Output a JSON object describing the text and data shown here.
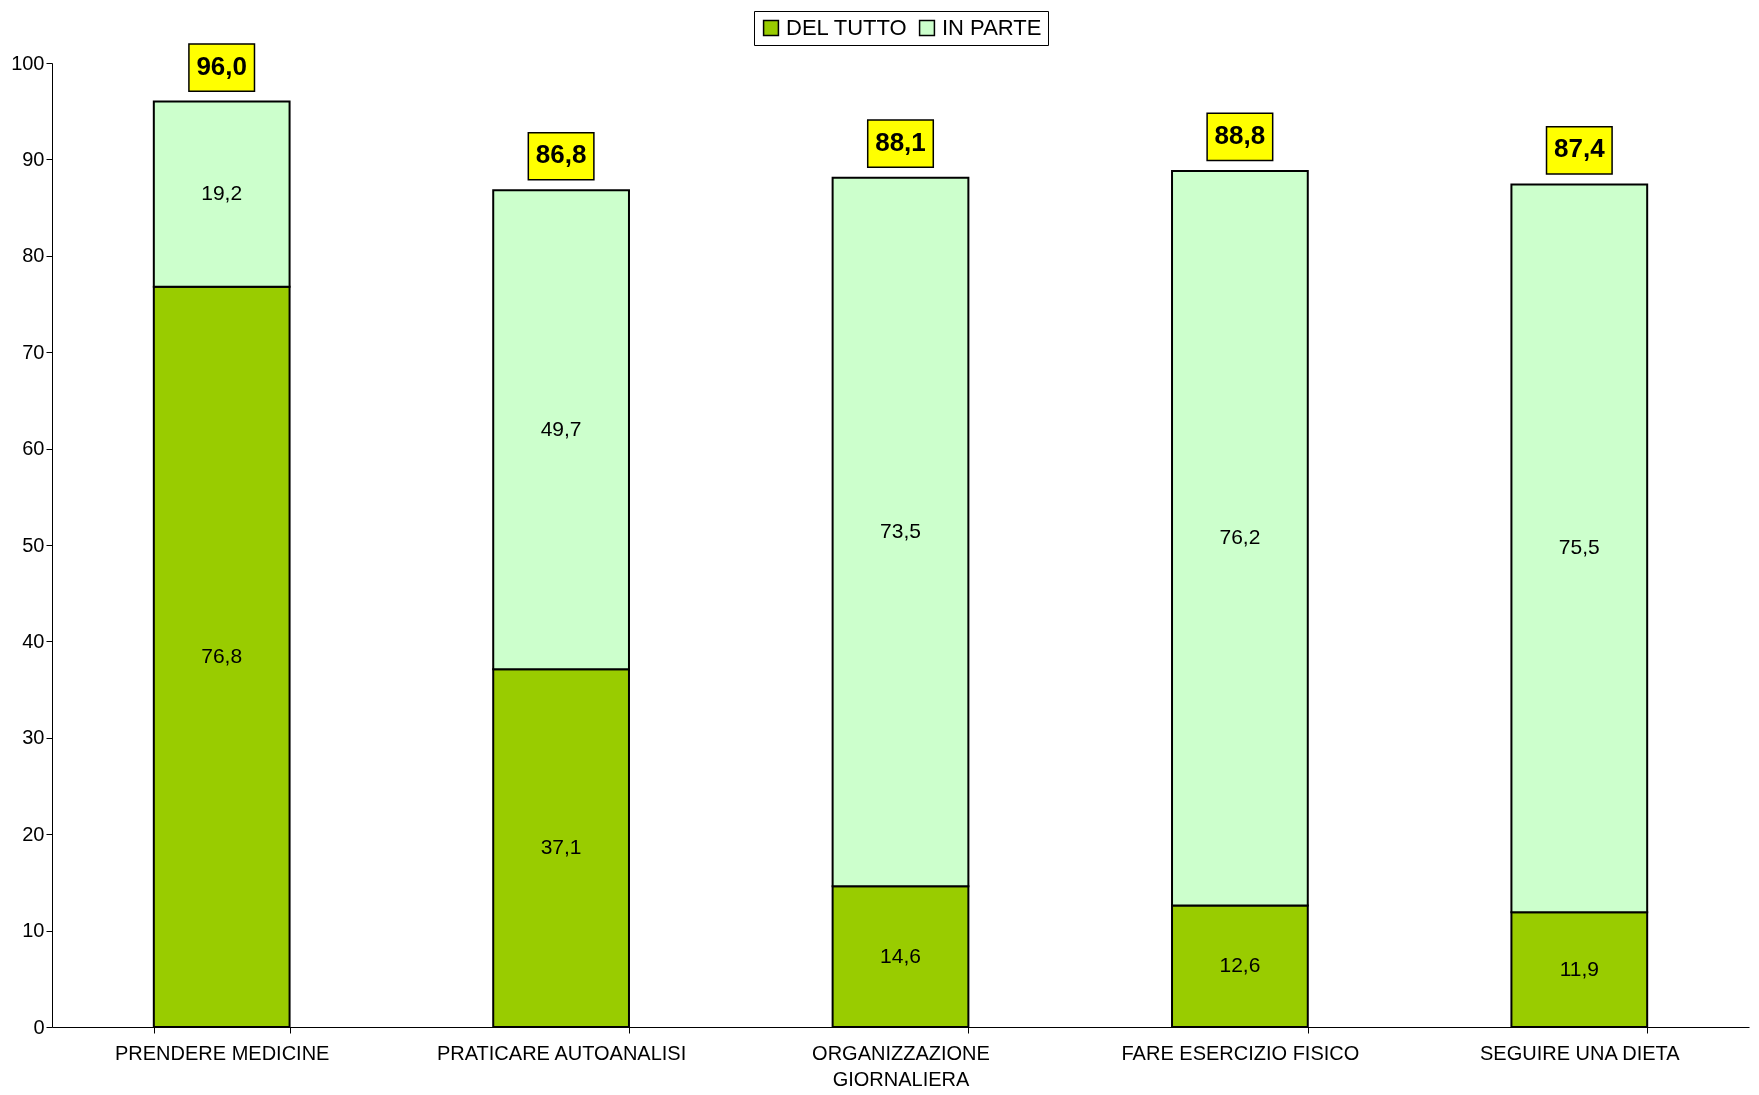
{
  "chart_data": {
    "type": "bar",
    "stacked": true,
    "categories": [
      "PRENDERE MEDICINE",
      "PRATICARE AUTOANALISI",
      "ORGANIZZAZIONE GIORNALIERA",
      "FARE ESERCIZIO FISICO",
      "SEGUIRE UNA DIETA"
    ],
    "series": [
      {
        "name": "DEL TUTTO",
        "color": "#99cc00",
        "values": [
          76.8,
          37.1,
          14.6,
          12.6,
          11.9
        ],
        "value_labels": [
          "76,8",
          "37,1",
          "14,6",
          "12,6",
          "11,9"
        ]
      },
      {
        "name": "IN PARTE",
        "color": "#ccffcc",
        "values": [
          19.2,
          49.7,
          73.5,
          76.2,
          75.5
        ],
        "value_labels": [
          "19,2",
          "49,7",
          "73,5",
          "76,2",
          "75,5"
        ]
      }
    ],
    "totals": [
      "96,0",
      "86,8",
      "88,1",
      "88,8",
      "87,4"
    ],
    "ylim": [
      0,
      100
    ],
    "yticks": [
      0,
      10,
      20,
      30,
      40,
      50,
      60,
      70,
      80,
      90,
      100
    ],
    "grid": false,
    "legend": "top"
  }
}
